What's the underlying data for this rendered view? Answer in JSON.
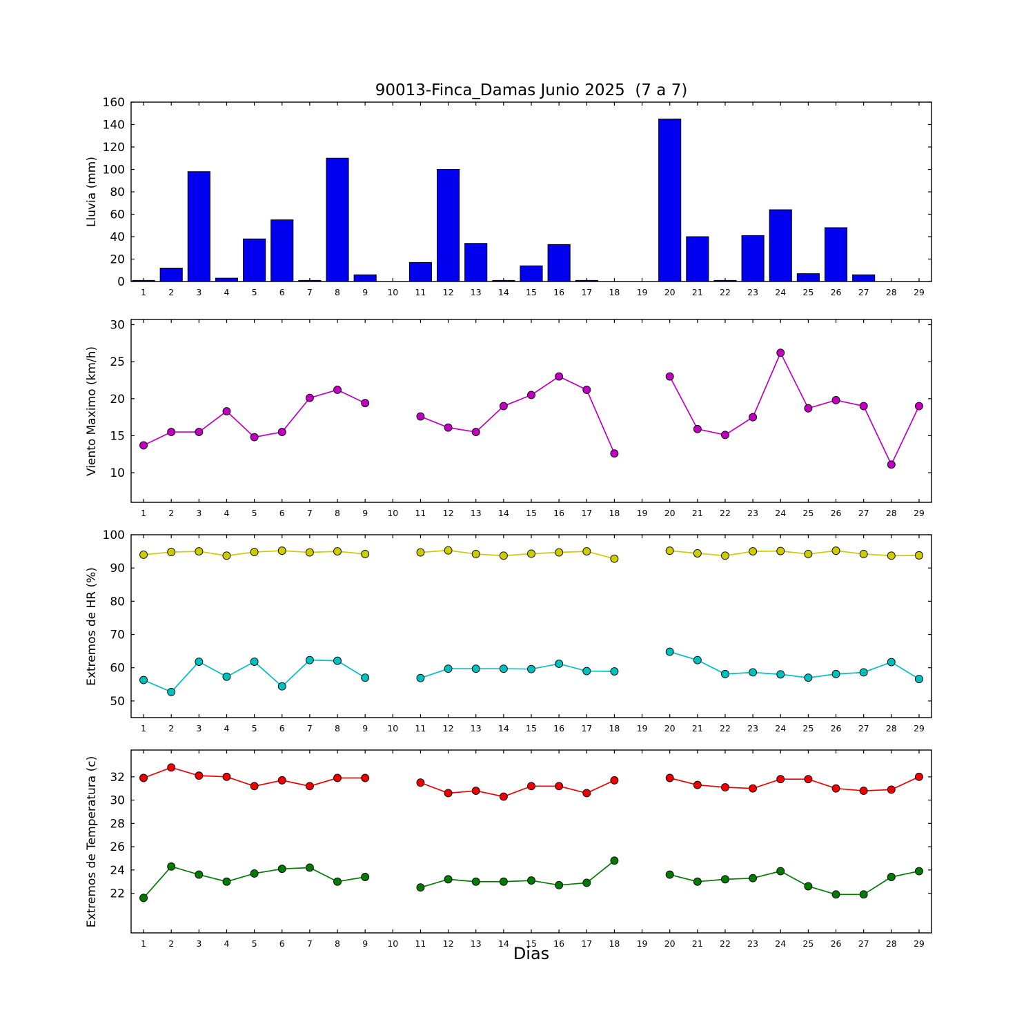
{
  "figure": {
    "title": "90013-Finca_Damas Junio 2025  (7 a 7)",
    "xlabel": "Dias",
    "days": [
      1,
      2,
      3,
      4,
      5,
      6,
      7,
      8,
      9,
      10,
      11,
      12,
      13,
      14,
      15,
      16,
      17,
      18,
      19,
      20,
      21,
      22,
      23,
      24,
      25,
      26,
      27,
      28,
      29
    ]
  },
  "chart_data": [
    {
      "type": "bar",
      "name": "lluvia",
      "ylabel": "Lluvia (mm)",
      "color": "#0000ee",
      "edge_color": "#000000",
      "ylim": [
        0,
        160
      ],
      "yticks": [
        0,
        20,
        40,
        60,
        80,
        100,
        120,
        140,
        160
      ],
      "values": [
        1,
        12,
        98,
        3,
        38,
        55,
        1,
        110,
        6,
        0,
        17,
        100,
        34,
        1,
        14,
        33,
        1,
        0,
        0,
        145,
        40,
        1,
        41,
        64,
        7,
        48,
        6,
        0,
        0
      ]
    },
    {
      "type": "line",
      "name": "viento_maximo",
      "ylabel": "Viento Maximo (km/h)",
      "ylim": [
        6,
        30.7
      ],
      "yticks": [
        10,
        15,
        20,
        25,
        30
      ],
      "series": [
        {
          "name": "viento_maximo",
          "color": "#bf00bf",
          "values": [
            13.7,
            15.5,
            15.5,
            18.3,
            14.8,
            15.5,
            20.1,
            21.2,
            19.4,
            null,
            17.6,
            16.1,
            15.5,
            19.0,
            20.5,
            23.0,
            21.2,
            12.6,
            null,
            23.0,
            15.9,
            15.1,
            17.5,
            26.2,
            18.7,
            19.8,
            19.0,
            11.1,
            19.0
          ]
        }
      ]
    },
    {
      "type": "line",
      "name": "extremos_hr",
      "ylabel": "Extremos de HR (%)",
      "ylim": [
        45,
        100
      ],
      "yticks": [
        50,
        60,
        70,
        80,
        90,
        100
      ],
      "series": [
        {
          "name": "hr_maxima",
          "color": "#cccc00",
          "values": [
            94.0,
            94.8,
            95.0,
            93.7,
            94.8,
            95.2,
            94.7,
            95.0,
            94.2,
            null,
            94.7,
            95.3,
            94.2,
            93.7,
            94.3,
            94.7,
            95.0,
            92.8,
            null,
            95.2,
            94.4,
            93.7,
            95.0,
            95.1,
            94.2,
            95.2,
            94.2,
            93.7,
            93.8
          ]
        },
        {
          "name": "hr_minima",
          "color": "#00bfbf",
          "values": [
            56.3,
            52.7,
            61.8,
            57.3,
            61.8,
            54.4,
            62.3,
            62.1,
            57.0,
            null,
            56.9,
            59.7,
            59.7,
            59.7,
            59.6,
            61.2,
            59.0,
            58.9,
            null,
            64.8,
            62.3,
            58.1,
            58.6,
            58.0,
            57.0,
            58.1,
            58.6,
            61.7,
            56.6
          ]
        }
      ]
    },
    {
      "type": "line",
      "name": "extremos_temperatura",
      "ylabel": "Extremos de Temperatura (c)",
      "ylim": [
        18.6,
        34.3
      ],
      "yticks": [
        22,
        24,
        26,
        28,
        30,
        32
      ],
      "series": [
        {
          "name": "temperatura_maxima",
          "color": "#ee0000",
          "values": [
            31.9,
            32.8,
            32.1,
            32.0,
            31.2,
            31.7,
            31.2,
            31.9,
            31.9,
            null,
            31.5,
            30.6,
            30.8,
            30.3,
            31.2,
            31.2,
            30.6,
            31.7,
            null,
            31.9,
            31.3,
            31.1,
            31.0,
            31.8,
            31.8,
            31.0,
            30.8,
            30.9,
            32.0
          ]
        },
        {
          "name": "temperatura_minima",
          "color": "#007a00",
          "values": [
            21.6,
            24.3,
            23.6,
            23.0,
            23.7,
            24.1,
            24.2,
            23.0,
            23.4,
            null,
            22.5,
            23.2,
            23.0,
            23.0,
            23.1,
            22.7,
            22.9,
            24.8,
            null,
            23.6,
            23.0,
            23.2,
            23.3,
            23.9,
            22.6,
            21.9,
            21.9,
            23.4,
            23.9
          ]
        }
      ]
    }
  ]
}
